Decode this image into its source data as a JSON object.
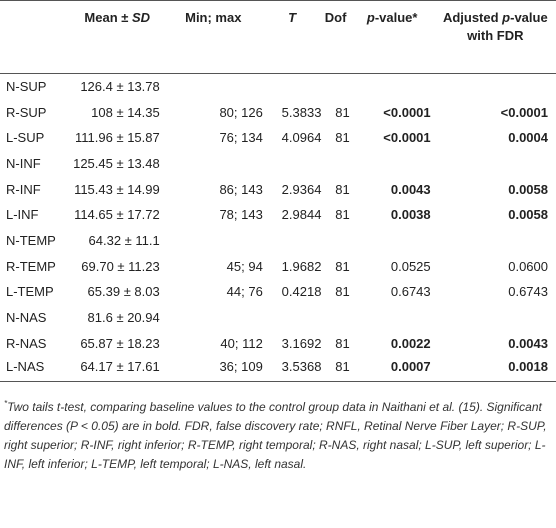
{
  "table": {
    "header": [
      [
        "Mean ± ",
        "SD"
      ],
      [
        "Min; max"
      ],
      [
        "T"
      ],
      [
        "Dof"
      ],
      [
        "p",
        "-value*"
      ],
      [
        "Adjusted ",
        "p",
        "-value with FDR"
      ]
    ],
    "rows": [
      {
        "cells": [
          "N-SUP",
          "126.4 ± 13.78"
        ]
      },
      {
        "cells": [
          "R-SUP",
          "108 ± 14.35",
          "80; 126",
          "5.3833",
          "81",
          "<0.0001",
          "<0.0001"
        ],
        "bold": [
          5,
          6
        ]
      },
      {
        "cells": [
          "L-SUP",
          "111.96 ± 15.87",
          "76; 134",
          "4.0964",
          "81",
          "<0.0001",
          "0.0004"
        ],
        "bold": [
          5,
          6
        ]
      },
      {
        "cells": [
          "N-INF",
          "125.45 ± 13.48"
        ]
      },
      {
        "cells": [
          "R-INF",
          "115.43 ± 14.99",
          "86; 143",
          "2.9364",
          "81",
          "0.0043",
          "0.0058"
        ],
        "bold": [
          5,
          6
        ]
      },
      {
        "cells": [
          "L-INF",
          "114.65 ± 17.72",
          "78; 143",
          "2.9844",
          "81",
          "0.0038",
          "0.0058"
        ],
        "bold": [
          5,
          6
        ]
      },
      {
        "cells": [
          "N-TEMP",
          "64.32 ± 11.1"
        ]
      },
      {
        "cells": [
          "R-TEMP",
          "69.70 ± 11.23",
          "45; 94",
          "1.9682",
          "81",
          "0.0525",
          "0.0600"
        ],
        "bold": []
      },
      {
        "cells": [
          "L-TEMP",
          "65.39 ± 8.03",
          "44; 76",
          "0.4218",
          "81",
          "0.6743",
          "0.6743"
        ],
        "bold": []
      },
      {
        "cells": [
          "N-NAS",
          "81.6 ± 20.94"
        ]
      },
      {
        "cells": [
          "R-NAS",
          "65.87 ± 18.23",
          "40; 112",
          "3.1692",
          "81",
          "0.0022",
          "0.0043"
        ],
        "bold": [
          5,
          6
        ]
      },
      {
        "cells": [
          "L-NAS",
          "64.17 ± 17.61",
          "36; 109",
          "3.5368",
          "81",
          "0.0007",
          "0.0018"
        ],
        "bold": [
          5,
          6
        ]
      }
    ]
  },
  "footnote": {
    "marker": "*",
    "text": "Two tails t-test, comparing baseline values to the control group data in Naithani et al. (15). Significant differences (P < 0.05) are in bold. FDR, false discovery rate; RNFL, Retinal Nerve Fiber Layer; R-SUP, right superior; R-INF, right inferior; R-TEMP, right temporal; R-NAS, right nasal; L-SUP, left superior; L-INF, left inferior; L-TEMP, left temporal; L-NAS, left nasal."
  }
}
